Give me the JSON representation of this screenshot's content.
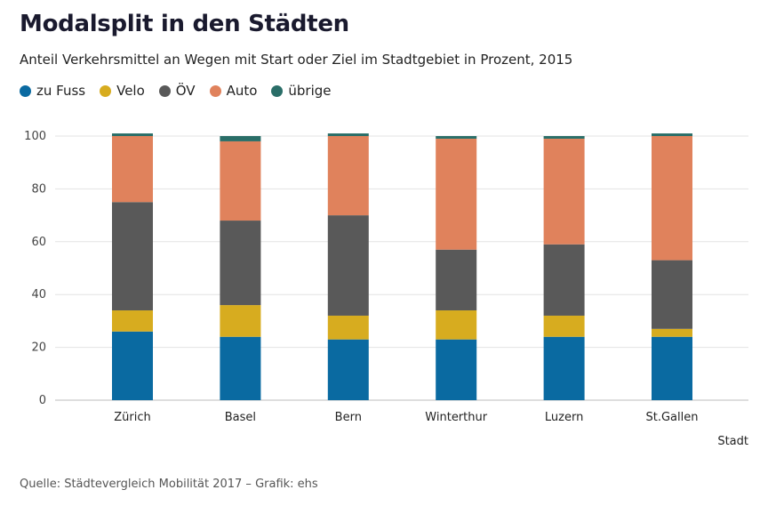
{
  "header": {
    "title": "Modalsplit in den Städten",
    "subtitle": "Anteil Verkehrsmittel an Wegen mit Start oder Ziel im Stadtgebiet in Prozent, 2015"
  },
  "chart_data": {
    "type": "bar",
    "stacked": true,
    "title": "Modalsplit in den Städten",
    "subtitle": "Anteil Verkehrsmittel an Wegen mit Start oder Ziel im Stadtgebiet in Prozent, 2015",
    "xlabel": "Stadt",
    "ylabel": "",
    "ylim": [
      0,
      100
    ],
    "yticks": [
      0,
      20,
      40,
      60,
      80,
      100
    ],
    "grid": true,
    "legend_position": "top-left",
    "categories": [
      "Zürich",
      "Basel",
      "Bern",
      "Winterthur",
      "Luzern",
      "St.Gallen"
    ],
    "series": [
      {
        "name": "zu Fuss",
        "color": "#0a6aa1",
        "values": [
          26,
          24,
          23,
          23,
          24,
          24
        ]
      },
      {
        "name": "Velo",
        "color": "#d7ac1f",
        "values": [
          8,
          12,
          9,
          11,
          8,
          3
        ]
      },
      {
        "name": "ÖV",
        "color": "#595959",
        "values": [
          41,
          32,
          38,
          23,
          27,
          26
        ]
      },
      {
        "name": "Auto",
        "color": "#e0825c",
        "values": [
          25,
          30,
          30,
          42,
          40,
          47
        ]
      },
      {
        "name": "übrige",
        "color": "#2a6e68",
        "values": [
          1,
          2,
          1,
          1,
          1,
          1
        ]
      }
    ]
  },
  "footer": {
    "source": "Quelle: Städtevergleich Mobilität 2017 – Grafik: ehs"
  }
}
